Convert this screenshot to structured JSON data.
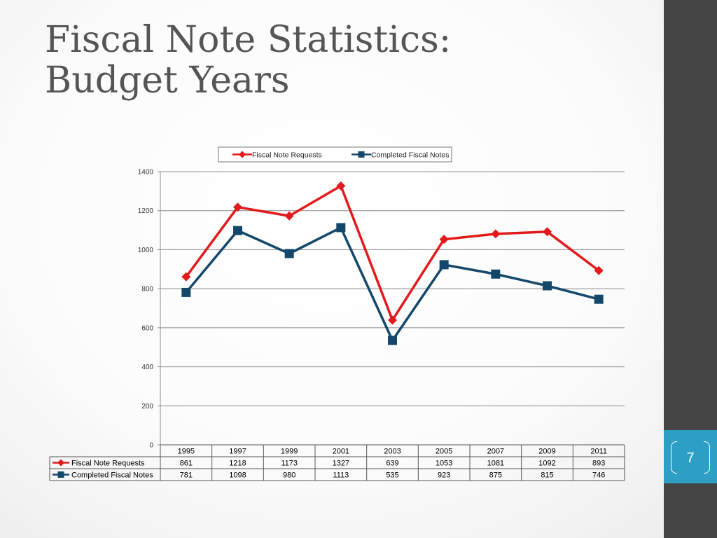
{
  "slide": {
    "title_line1": "Fiscal Note Statistics:",
    "title_line2": "Budget Years",
    "page_number": "7"
  },
  "chart_data": {
    "type": "line",
    "x": [
      "1995",
      "1997",
      "1999",
      "2001",
      "2003",
      "2005",
      "2007",
      "2009",
      "2011"
    ],
    "series": [
      {
        "name": "Fiscal Note Requests",
        "values": [
          861,
          1218,
          1173,
          1327,
          639,
          1053,
          1081,
          1092,
          893
        ],
        "color": "#e31a1c",
        "marker": "diamond"
      },
      {
        "name": "Completed Fiscal Notes",
        "values": [
          781,
          1098,
          980,
          1113,
          535,
          923,
          875,
          815,
          746
        ],
        "color": "#13486b",
        "marker": "square"
      }
    ],
    "ylim": [
      0,
      1400
    ],
    "yticks": [
      "0",
      "200",
      "400",
      "600",
      "800",
      "1000",
      "1200",
      "1400"
    ],
    "grid": true,
    "legend": "top",
    "data_table": true
  }
}
